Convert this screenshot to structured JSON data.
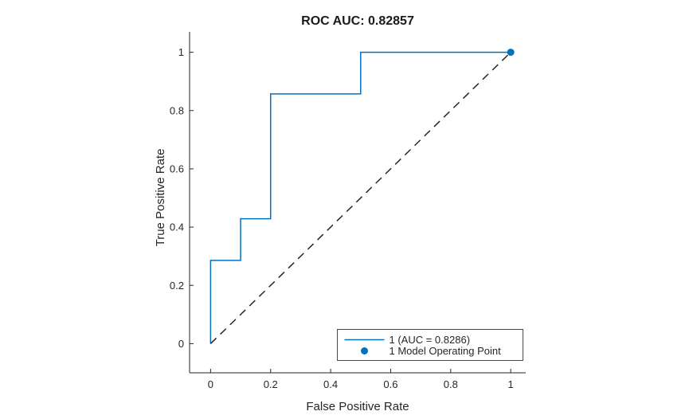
{
  "figure": {
    "background": "#ffffff",
    "axis_color": "#262626",
    "accent_color": "#0072BD"
  },
  "chart_data": {
    "type": "line",
    "title": "ROC AUC: 0.82857",
    "xlabel": "False Positive Rate",
    "ylabel": "True Positive Rate",
    "xlim": [
      -0.07,
      1.05
    ],
    "ylim": [
      -0.1,
      1.07
    ],
    "grid": false,
    "x_ticks": [
      0,
      0.2,
      0.4,
      0.6,
      0.8,
      1
    ],
    "x_tick_labels": [
      "0",
      "0.2",
      "0.4",
      "0.6",
      "0.8",
      "1"
    ],
    "y_ticks": [
      0,
      0.2,
      0.4,
      0.6,
      0.8,
      1
    ],
    "y_tick_labels": [
      "0",
      "0.2",
      "0.4",
      "0.6",
      "0.8",
      "1"
    ],
    "series": [
      {
        "name": "roc-curve",
        "label": "1 (AUC = 0.8286)",
        "style": "solid",
        "color": "#0072BD",
        "points": [
          [
            0,
            0
          ],
          [
            0,
            0.2857
          ],
          [
            0.1,
            0.2857
          ],
          [
            0.1,
            0.4286
          ],
          [
            0.2,
            0.4286
          ],
          [
            0.2,
            0.8571
          ],
          [
            0.5,
            0.8571
          ],
          [
            0.5,
            1
          ],
          [
            1,
            1
          ]
        ]
      },
      {
        "name": "random-classifier-reference",
        "label": "",
        "style": "dashed",
        "color": "#262626",
        "points": [
          [
            0,
            0
          ],
          [
            1,
            1
          ]
        ]
      },
      {
        "name": "model-operating-point",
        "label": "1 Model Operating Point",
        "style": "scatter",
        "color": "#0072BD",
        "points": [
          [
            1,
            1
          ]
        ]
      }
    ],
    "legend": {
      "position": "southeast",
      "border_color": "#4a4a4a",
      "background": "#ffffff",
      "entries": [
        {
          "label": "1 (AUC = 0.8286)",
          "marker": "line",
          "color": "#0072BD"
        },
        {
          "label": "1 Model Operating Point",
          "marker": "dot",
          "color": "#0072BD"
        }
      ]
    }
  }
}
